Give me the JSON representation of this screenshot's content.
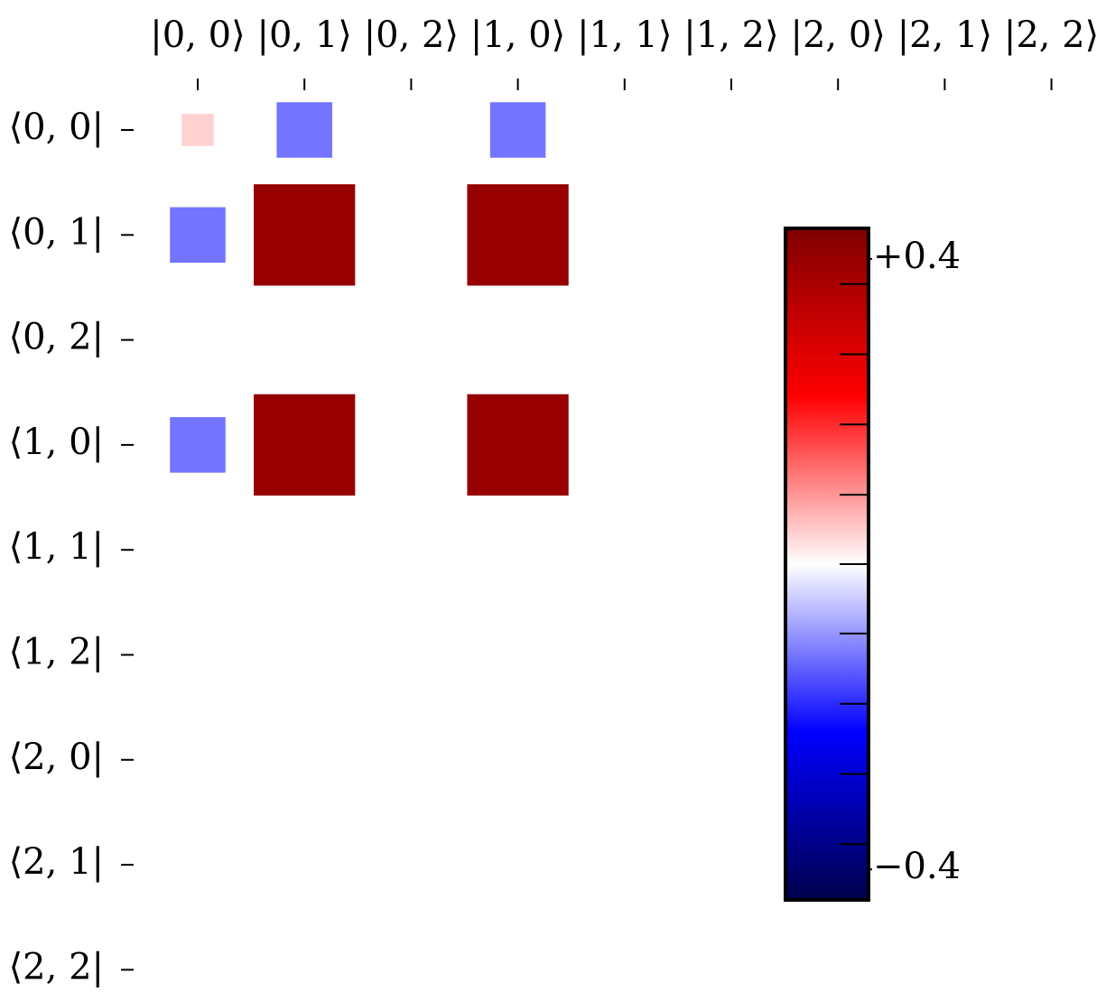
{
  "chart_data": {
    "type": "hinton",
    "columns": [
      "|0, 0⟩",
      "|0, 1⟩",
      "|0, 2⟩",
      "|1, 0⟩",
      "|1, 1⟩",
      "|1, 2⟩",
      "|2, 0⟩",
      "|2, 1⟩",
      "|2, 2⟩"
    ],
    "rows": [
      "⟨0, 0|",
      "⟨0, 1|",
      "⟨0, 2|",
      "⟨1, 0|",
      "⟨1, 1|",
      "⟨1, 2|",
      "⟨2, 0|",
      "⟨2, 1|",
      "⟨2, 2|"
    ],
    "z": [
      [
        0.04,
        -0.12,
        0,
        -0.12,
        0,
        0,
        0,
        0,
        0
      ],
      [
        -0.12,
        0.4,
        0,
        0.4,
        0,
        0,
        0,
        0,
        0
      ],
      [
        0,
        0,
        0,
        0,
        0,
        0,
        0,
        0,
        0
      ],
      [
        -0.12,
        0.4,
        0,
        0.4,
        0,
        0,
        0,
        0,
        0
      ],
      [
        0,
        0,
        0,
        0,
        0,
        0,
        0,
        0,
        0
      ],
      [
        0,
        0,
        0,
        0,
        0,
        0,
        0,
        0,
        0
      ],
      [
        0,
        0,
        0,
        0,
        0,
        0,
        0,
        0,
        0
      ],
      [
        0,
        0,
        0,
        0,
        0,
        0,
        0,
        0,
        0
      ],
      [
        0,
        0,
        0,
        0,
        0,
        0,
        0,
        0,
        0
      ]
    ],
    "colormap": "seismic",
    "clim": [
      -0.44,
      0.44
    ],
    "cticks": [
      {
        "value": 0.4,
        "label": "+0.4"
      },
      {
        "value": -0.4,
        "label": "−0.4"
      }
    ],
    "cminorticks": [
      -0.367,
      -0.275,
      -0.183,
      -0.091,
      0,
      0.091,
      0.183,
      0.275,
      0.367
    ]
  }
}
